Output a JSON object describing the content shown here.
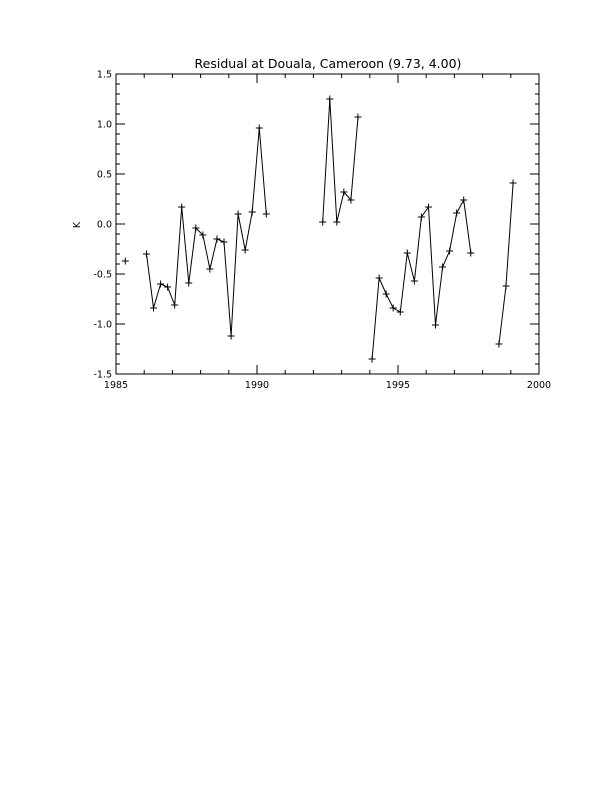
{
  "chart_data": {
    "type": "line",
    "title": "Residual at Douala, Cameroon (9.73, 4.00)",
    "xlabel": "",
    "ylabel": "K",
    "xlim": [
      1985,
      2000
    ],
    "ylim": [
      -1.5,
      1.5
    ],
    "grid": false,
    "marker": "plus",
    "x_ticks": [
      1985,
      1990,
      1995,
      2000
    ],
    "x_tick_labels": [
      "1985",
      "1990",
      "1995",
      "2000"
    ],
    "y_ticks": [
      -1.5,
      -1.0,
      -0.5,
      0.0,
      0.5,
      1.0,
      1.5
    ],
    "y_tick_labels": [
      "-1.5",
      "-1.0",
      "-0.5",
      "0.0",
      "0.5",
      "1.0",
      "1.5"
    ],
    "segments": [
      {
        "x": [
          1985.33
        ],
        "y": [
          -0.37
        ]
      },
      {
        "x": [
          1986.08,
          1986.33,
          1986.58,
          1986.83,
          1987.08,
          1987.33,
          1987.58,
          1987.83,
          1988.08,
          1988.33,
          1988.58,
          1988.83,
          1989.08,
          1989.33,
          1989.58,
          1989.83,
          1990.08,
          1990.33
        ],
        "y": [
          -0.3,
          -0.84,
          -0.6,
          -0.63,
          -0.81,
          0.17,
          -0.59,
          -0.04,
          -0.11,
          -0.45,
          -0.15,
          -0.18,
          -1.12,
          0.1,
          -0.26,
          0.12,
          0.96,
          0.1
        ]
      },
      {
        "x": [
          1992.33,
          1992.58,
          1992.83,
          1993.08,
          1993.33,
          1993.58
        ],
        "y": [
          0.02,
          1.25,
          0.02,
          0.32,
          0.24,
          1.07
        ]
      },
      {
        "x": [
          1994.08,
          1994.33,
          1994.58,
          1994.83,
          1995.08,
          1995.33,
          1995.58,
          1995.83,
          1996.08,
          1996.33,
          1996.58,
          1996.83,
          1997.08,
          1997.33,
          1997.58
        ],
        "y": [
          -1.35,
          -0.54,
          -0.7,
          -0.84,
          -0.88,
          -0.29,
          -0.57,
          0.07,
          0.17,
          -1.01,
          -0.43,
          -0.27,
          0.11,
          0.24,
          -0.29
        ]
      },
      {
        "x": [
          1998.58,
          1998.83,
          1999.08
        ],
        "y": [
          -1.2,
          -0.62,
          0.41
        ]
      }
    ]
  }
}
